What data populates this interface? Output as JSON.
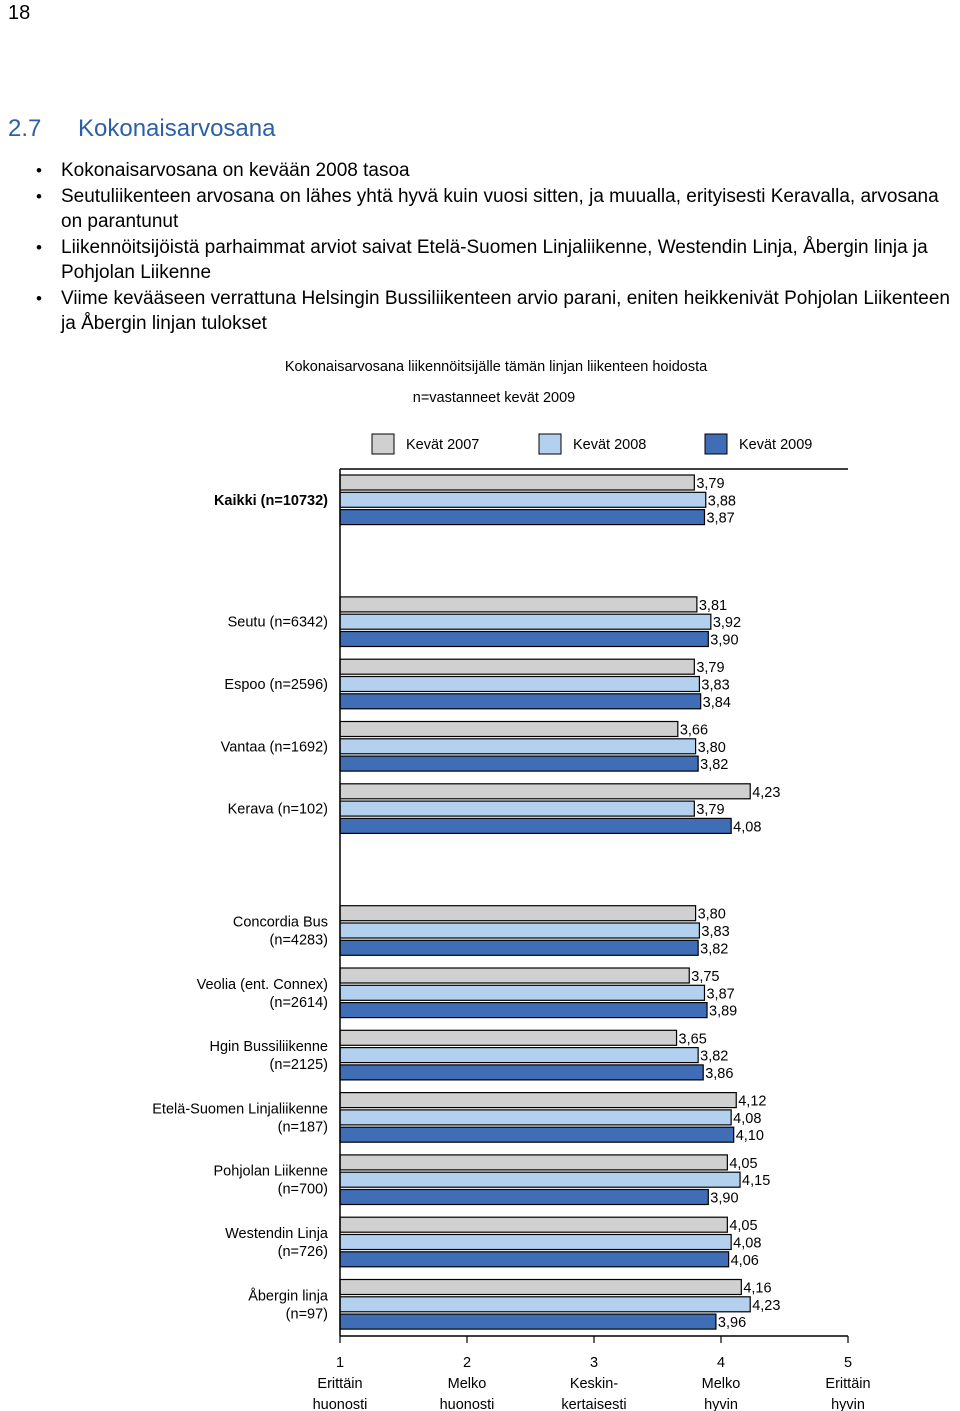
{
  "page": {
    "number": "18",
    "section_number": "2.7",
    "section_title": "Kokonaisarvosana",
    "bullets": [
      "Kokonaisarvosana on kevään 2008 tasoa",
      "Seutuliikenteen arvosana on lähes yhtä hyvä kuin vuosi sitten, ja muualla, erityisesti Keravalla, arvosana on parantunut",
      "Liikennöitsijöistä parhaimmat arviot saivat Etelä-Suomen Linjaliikenne, Westendin Linja, Åbergin linja ja Pohjolan Liikenne",
      "Viime kevääseen verrattuna Helsingin Bussiliikenteen arvio parani, eniten heikkenivät Pohjolan Liikenteen ja Åbergin linjan tulokset"
    ]
  },
  "chart_data": {
    "type": "bar",
    "orientation": "horizontal",
    "title": "Kokonaisarvosana liikennöitsijälle tämän linjan liikenteen hoidosta",
    "subtitle": "n=vastanneet kevät 2009",
    "legend_position": "top",
    "xlim": [
      1,
      5
    ],
    "x_ticks": [
      {
        "value": 1,
        "label": [
          "1",
          "Erittäin",
          "huonosti"
        ]
      },
      {
        "value": 2,
        "label": [
          "2",
          "Melko",
          "huonosti"
        ]
      },
      {
        "value": 3,
        "label": [
          "3",
          "Keskin-",
          "kertaisesti"
        ]
      },
      {
        "value": 4,
        "label": [
          "4",
          "Melko",
          "hyvin"
        ]
      },
      {
        "value": 5,
        "label": [
          "5",
          "Erittäin",
          "hyvin"
        ]
      }
    ],
    "series": [
      {
        "name": "Kevät 2007",
        "color": "#d0d0d0"
      },
      {
        "name": "Kevät 2008",
        "color": "#b3d1ee"
      },
      {
        "name": "Kevät 2009",
        "color": "#3f6eb6"
      }
    ],
    "groups": [
      {
        "categories": [
          {
            "label": [
              "Kaikki (n=10732)"
            ],
            "bold": true,
            "values": [
              3.79,
              3.88,
              3.87
            ],
            "value_labels": [
              "3,79",
              "3,88",
              "3,87"
            ]
          }
        ]
      },
      {
        "categories": [
          {
            "label": [
              "Seutu (n=6342)"
            ],
            "values": [
              3.81,
              3.92,
              3.9
            ],
            "value_labels": [
              "3,81",
              "3,92",
              "3,90"
            ]
          },
          {
            "label": [
              "Espoo (n=2596)"
            ],
            "values": [
              3.79,
              3.83,
              3.84
            ],
            "value_labels": [
              "3,79",
              "3,83",
              "3,84"
            ]
          },
          {
            "label": [
              "Vantaa (n=1692)"
            ],
            "values": [
              3.66,
              3.8,
              3.82
            ],
            "value_labels": [
              "3,66",
              "3,80",
              "3,82"
            ]
          },
          {
            "label": [
              "Kerava (n=102)"
            ],
            "values": [
              4.23,
              3.79,
              4.08
            ],
            "value_labels": [
              "4,23",
              "3,79",
              "4,08"
            ]
          }
        ]
      },
      {
        "categories": [
          {
            "label": [
              "Concordia Bus",
              "(n=4283)"
            ],
            "values": [
              3.8,
              3.83,
              3.82
            ],
            "value_labels": [
              "3,80",
              "3,83",
              "3,82"
            ]
          },
          {
            "label": [
              "Veolia (ent. Connex)",
              "(n=2614)"
            ],
            "values": [
              3.75,
              3.87,
              3.89
            ],
            "value_labels": [
              "3,75",
              "3,87",
              "3,89"
            ]
          },
          {
            "label": [
              "Hgin Bussiliikenne",
              "(n=2125)"
            ],
            "values": [
              3.65,
              3.82,
              3.86
            ],
            "value_labels": [
              "3,65",
              "3,82",
              "3,86"
            ]
          },
          {
            "label": [
              "Etelä-Suomen Linjaliikenne",
              "(n=187)"
            ],
            "values": [
              4.12,
              4.08,
              4.1
            ],
            "value_labels": [
              "4,12",
              "4,08",
              "4,10"
            ]
          },
          {
            "label": [
              "Pohjolan Liikenne",
              "(n=700)"
            ],
            "values": [
              4.05,
              4.15,
              3.9
            ],
            "value_labels": [
              "4,05",
              "4,15",
              "3,90"
            ]
          },
          {
            "label": [
              "Westendin Linja",
              "(n=726)"
            ],
            "values": [
              4.05,
              4.08,
              4.06
            ],
            "value_labels": [
              "4,05",
              "4,08",
              "4,06"
            ]
          },
          {
            "label": [
              "Åbergin linja",
              "(n=97)"
            ],
            "values": [
              4.16,
              4.23,
              3.96
            ],
            "value_labels": [
              "4,16",
              "4,23",
              "3,96"
            ]
          }
        ]
      }
    ]
  }
}
